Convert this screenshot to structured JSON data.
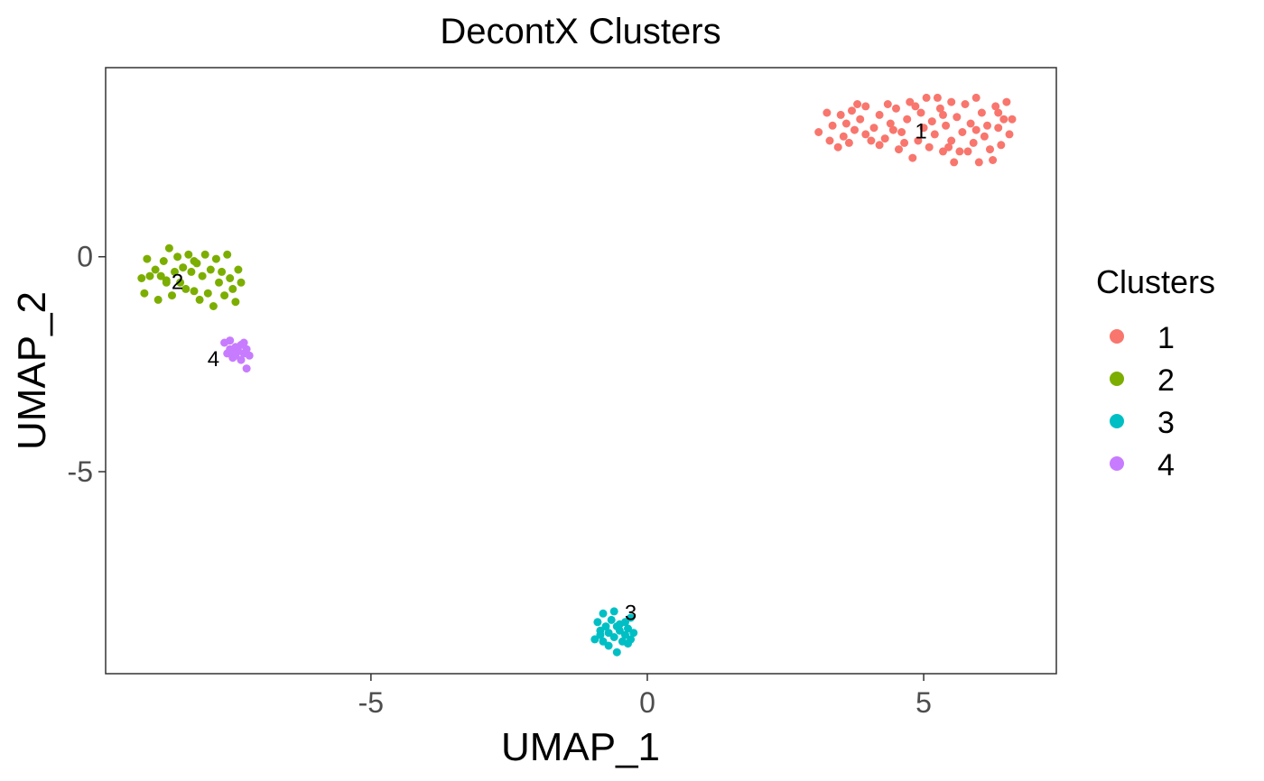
{
  "chart_data": {
    "type": "scatter",
    "title": "DecontX Clusters",
    "xlabel": "UMAP_1",
    "ylabel": "UMAP_2",
    "xlim": [
      -9.8,
      7.4
    ],
    "ylim": [
      -9.7,
      4.4
    ],
    "xticks": [
      -5,
      0,
      5
    ],
    "yticks": [
      0,
      -5
    ],
    "grid": false,
    "legend": {
      "title": "Clusters",
      "position": "right"
    },
    "series": [
      {
        "name": "1",
        "color": "#F8766D",
        "label": {
          "text": "1",
          "x": 4.95,
          "y": 2.75
        },
        "points": [
          [
            3.1,
            2.9
          ],
          [
            3.3,
            2.7
          ],
          [
            3.35,
            3.05
          ],
          [
            3.5,
            3.3
          ],
          [
            3.55,
            2.8
          ],
          [
            3.6,
            3.1
          ],
          [
            3.7,
            3.4
          ],
          [
            3.75,
            2.95
          ],
          [
            3.85,
            3.2
          ],
          [
            3.95,
            3.5
          ],
          [
            3.95,
            2.85
          ],
          [
            4.1,
            3.0
          ],
          [
            4.2,
            3.3
          ],
          [
            4.2,
            2.6
          ],
          [
            4.3,
            2.75
          ],
          [
            4.4,
            3.1
          ],
          [
            4.5,
            3.45
          ],
          [
            4.55,
            2.5
          ],
          [
            4.6,
            2.9
          ],
          [
            4.7,
            3.2
          ],
          [
            4.75,
            3.6
          ],
          [
            4.8,
            2.3
          ],
          [
            4.9,
            2.7
          ],
          [
            4.95,
            3.35
          ],
          [
            5.0,
            3.0
          ],
          [
            5.05,
            3.7
          ],
          [
            5.1,
            2.55
          ],
          [
            5.15,
            3.15
          ],
          [
            5.2,
            2.85
          ],
          [
            5.3,
            3.45
          ],
          [
            5.35,
            2.45
          ],
          [
            5.4,
            3.05
          ],
          [
            5.5,
            2.7
          ],
          [
            5.5,
            3.6
          ],
          [
            5.55,
            2.2
          ],
          [
            5.6,
            3.25
          ],
          [
            5.7,
            2.9
          ],
          [
            5.75,
            3.55
          ],
          [
            5.8,
            2.45
          ],
          [
            5.85,
            3.1
          ],
          [
            5.9,
            2.65
          ],
          [
            5.95,
            3.7
          ],
          [
            6.0,
            2.2
          ],
          [
            6.05,
            3.35
          ],
          [
            6.1,
            2.8
          ],
          [
            6.15,
            3.05
          ],
          [
            6.2,
            2.5
          ],
          [
            6.3,
            3.5
          ],
          [
            6.35,
            3.0
          ],
          [
            6.4,
            2.6
          ],
          [
            6.45,
            3.2
          ],
          [
            6.5,
            3.6
          ],
          [
            6.6,
            3.2
          ],
          [
            6.55,
            2.85
          ],
          [
            3.45,
            2.55
          ],
          [
            3.8,
            3.55
          ],
          [
            4.05,
            2.7
          ],
          [
            4.35,
            3.55
          ],
          [
            4.65,
            2.65
          ],
          [
            5.25,
            3.7
          ],
          [
            5.65,
            2.45
          ],
          [
            6.25,
            2.25
          ],
          [
            4.85,
            3.5
          ],
          [
            5.45,
            2.55
          ],
          [
            6.35,
            3.35
          ],
          [
            3.25,
            3.35
          ],
          [
            3.65,
            2.65
          ],
          [
            4.45,
            2.95
          ],
          [
            5.35,
            3.3
          ],
          [
            5.95,
            2.95
          ]
        ]
      },
      {
        "name": "2",
        "color": "#7CAE00",
        "label": {
          "text": "2",
          "x": -8.5,
          "y": -0.75
        },
        "points": [
          [
            -9.15,
            -0.5
          ],
          [
            -9.1,
            -0.85
          ],
          [
            -9.05,
            -0.05
          ],
          [
            -9.0,
            -0.45
          ],
          [
            -8.9,
            -0.3
          ],
          [
            -8.85,
            -1.0
          ],
          [
            -8.8,
            -0.45
          ],
          [
            -8.75,
            -0.1
          ],
          [
            -8.7,
            -0.55
          ],
          [
            -8.65,
            0.2
          ],
          [
            -8.6,
            -0.9
          ],
          [
            -8.55,
            -0.35
          ],
          [
            -8.5,
            0.0
          ],
          [
            -8.45,
            -0.6
          ],
          [
            -8.4,
            -0.25
          ],
          [
            -8.35,
            -0.75
          ],
          [
            -8.3,
            0.05
          ],
          [
            -8.25,
            -0.35
          ],
          [
            -8.2,
            -0.8
          ],
          [
            -8.15,
            -0.15
          ],
          [
            -8.1,
            -1.0
          ],
          [
            -8.05,
            -0.45
          ],
          [
            -8.0,
            0.05
          ],
          [
            -7.95,
            -0.85
          ],
          [
            -7.9,
            -0.3
          ],
          [
            -7.85,
            -1.15
          ],
          [
            -7.8,
            -0.05
          ],
          [
            -7.75,
            -0.6
          ],
          [
            -7.7,
            -0.35
          ],
          [
            -7.65,
            -0.9
          ],
          [
            -7.6,
            0.05
          ],
          [
            -7.55,
            -0.5
          ],
          [
            -7.5,
            -0.75
          ],
          [
            -7.45,
            -1.05
          ],
          [
            -7.4,
            -0.3
          ],
          [
            -7.35,
            -0.6
          ],
          [
            -8.7,
            -0.6
          ],
          [
            -8.2,
            -0.1
          ]
        ]
      },
      {
        "name": "3",
        "color": "#00BFC4",
        "label": {
          "text": "3",
          "x": -0.3,
          "y": -8.45
        },
        "points": [
          [
            -0.95,
            -8.9
          ],
          [
            -0.9,
            -8.5
          ],
          [
            -0.85,
            -8.7
          ],
          [
            -0.8,
            -8.3
          ],
          [
            -0.8,
            -8.95
          ],
          [
            -0.75,
            -8.6
          ],
          [
            -0.7,
            -8.75
          ],
          [
            -0.7,
            -9.05
          ],
          [
            -0.65,
            -8.45
          ],
          [
            -0.6,
            -8.85
          ],
          [
            -0.6,
            -8.25
          ],
          [
            -0.55,
            -8.6
          ],
          [
            -0.55,
            -9.2
          ],
          [
            -0.5,
            -8.7
          ],
          [
            -0.45,
            -8.95
          ],
          [
            -0.4,
            -8.5
          ],
          [
            -0.4,
            -8.8
          ],
          [
            -0.35,
            -8.65
          ],
          [
            -0.3,
            -8.9
          ],
          [
            -0.3,
            -8.4
          ],
          [
            -0.25,
            -8.75
          ],
          [
            -0.85,
            -8.8
          ],
          [
            -0.5,
            -8.55
          ],
          [
            -0.35,
            -9.0
          ]
        ]
      },
      {
        "name": "4",
        "color": "#C77CFF",
        "label": {
          "text": "4",
          "x": -7.85,
          "y": -2.55
        },
        "points": [
          [
            -7.65,
            -2.0
          ],
          [
            -7.6,
            -2.25
          ],
          [
            -7.55,
            -2.15
          ],
          [
            -7.55,
            -1.95
          ],
          [
            -7.5,
            -2.35
          ],
          [
            -7.45,
            -2.1
          ],
          [
            -7.45,
            -2.3
          ],
          [
            -7.4,
            -2.2
          ],
          [
            -7.35,
            -2.05
          ],
          [
            -7.35,
            -2.4
          ],
          [
            -7.3,
            -2.25
          ],
          [
            -7.25,
            -2.15
          ],
          [
            -7.25,
            -2.6
          ],
          [
            -7.2,
            -2.3
          ],
          [
            -7.5,
            -2.2
          ],
          [
            -7.3,
            -2.0
          ]
        ]
      }
    ]
  }
}
